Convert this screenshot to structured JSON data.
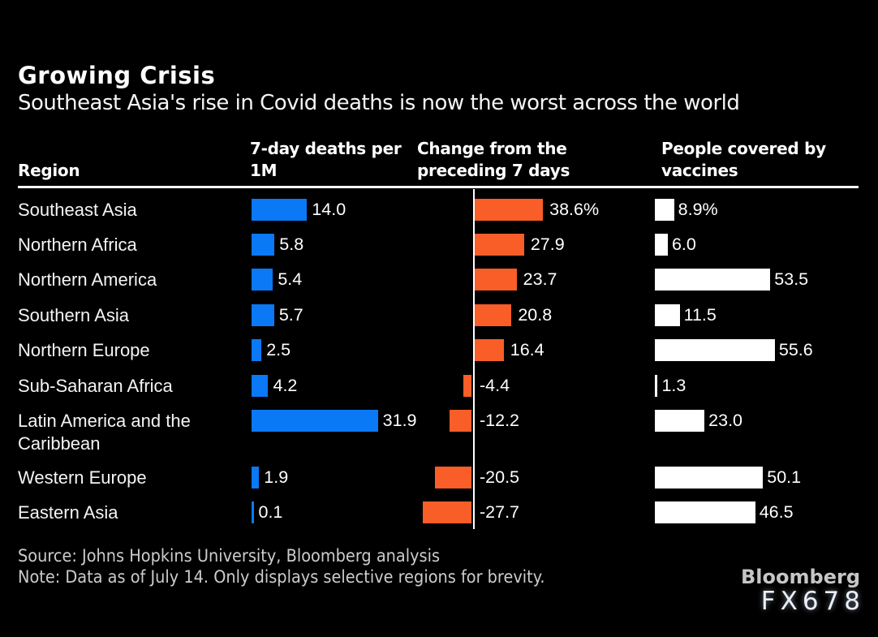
{
  "header": {
    "title": "Growing Crisis",
    "subtitle": "Southeast Asia's rise in Covid deaths is now the worst across the world"
  },
  "columns": {
    "region": "Region",
    "deaths_line1": "7-day deaths per",
    "deaths_line2": "1M",
    "change_line1": "Change from the",
    "change_line2": "preceding 7 days",
    "vaccines_line1": "People covered by",
    "vaccines_line2": "vaccines"
  },
  "chart_data": {
    "type": "bar",
    "title": "Growing Crisis",
    "subtitle": "Southeast Asia's rise in Covid deaths is now the worst across the world",
    "categories": [
      "Southeast Asia",
      "Northern Africa",
      "Northern America",
      "Southern Asia",
      "Northern Europe",
      "Sub-Saharan Africa",
      "Latin America and the Caribbean",
      "Western Europe",
      "Eastern Asia"
    ],
    "series": [
      {
        "name": "7-day deaths per 1M",
        "color": "#0b78f5",
        "values": [
          14.0,
          5.8,
          5.4,
          5.7,
          2.5,
          4.2,
          31.9,
          1.9,
          0.1
        ],
        "labels": [
          "14.0",
          "5.8",
          "5.4",
          "5.7",
          "2.5",
          "4.2",
          "31.9",
          "1.9",
          "0.1"
        ]
      },
      {
        "name": "Change from the preceding 7 days",
        "color": "#f95d28",
        "values": [
          38.6,
          27.9,
          23.7,
          20.8,
          16.4,
          -4.4,
          -12.2,
          -20.5,
          -27.7
        ],
        "labels": [
          "38.6%",
          "27.9",
          "23.7",
          "20.8",
          "16.4",
          "-4.4",
          "-12.2",
          "-20.5",
          "-27.7"
        ]
      },
      {
        "name": "People covered by vaccines",
        "color": "#ffffff",
        "values": [
          8.9,
          6.0,
          53.5,
          11.5,
          55.6,
          1.3,
          23.0,
          50.1,
          46.5
        ],
        "labels": [
          "8.9%",
          "6.0",
          "53.5",
          "11.5",
          "55.6",
          "1.3",
          "23.0",
          "50.1",
          "46.5"
        ]
      }
    ],
    "layout": {
      "orientation": "horizontal",
      "grid": false,
      "legend": "none",
      "negative_bars_extend_left_of_axis": true
    }
  },
  "footer": {
    "source": "Source: Johns Hopkins University, Bloomberg analysis",
    "note": "Note: Data as of July 14. Only displays selective regions for brevity.",
    "brand": "Bloomberg",
    "watermark": "FX678"
  },
  "colors": {
    "background": "#000000",
    "deaths_bar": "#0b78f5",
    "change_bar": "#f95d28",
    "vaccines_bar": "#ffffff",
    "text": "#ffffff",
    "footer_text": "#cccccc"
  }
}
